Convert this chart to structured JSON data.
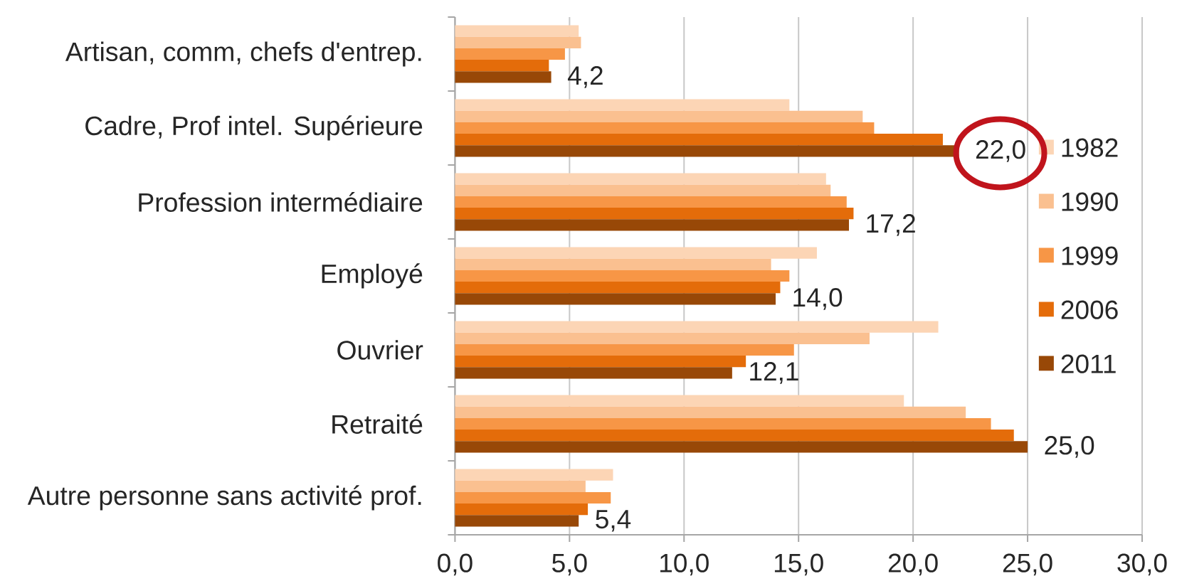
{
  "chart_data": {
    "type": "bar",
    "orientation": "horizontal",
    "categories": [
      "Artisan, comm, chefs d'entrep.",
      "Cadre, Prof intel. Supérieure",
      "Profession intermédiaire",
      "Employé",
      "Ouvrier",
      "Retraité",
      "Autre personne sans activité prof."
    ],
    "series": [
      {
        "name": "1982",
        "color": "#fcd5b5",
        "values": [
          5.4,
          14.6,
          16.2,
          15.8,
          21.1,
          19.6,
          6.9
        ]
      },
      {
        "name": "1990",
        "color": "#fac090",
        "values": [
          5.5,
          17.8,
          16.4,
          13.8,
          18.1,
          22.3,
          5.7
        ]
      },
      {
        "name": "1999",
        "color": "#f79646",
        "values": [
          4.8,
          18.3,
          17.1,
          14.6,
          14.8,
          23.4,
          6.8
        ]
      },
      {
        "name": "2006",
        "color": "#e46c0a",
        "values": [
          4.1,
          21.3,
          17.4,
          14.2,
          12.7,
          24.4,
          5.8
        ]
      },
      {
        "name": "2011",
        "color": "#984807",
        "values": [
          4.2,
          22.0,
          17.2,
          14.0,
          12.1,
          25.0,
          5.4
        ],
        "value_labels": [
          "4,2",
          "22,0",
          "17,2",
          "14,0",
          "12,1",
          "25,0",
          "5,4"
        ]
      }
    ],
    "xlim": [
      0,
      30
    ],
    "xticks": [
      {
        "value": 0,
        "label": "0,0"
      },
      {
        "value": 5,
        "label": "5,0"
      },
      {
        "value": 10,
        "label": "10,0"
      },
      {
        "value": 15,
        "label": "15,0"
      },
      {
        "value": 20,
        "label": "20,0"
      },
      {
        "value": 25,
        "label": "25,0"
      },
      {
        "value": 30,
        "label": "30,0"
      }
    ],
    "grid": "x",
    "legend": "right"
  }
}
